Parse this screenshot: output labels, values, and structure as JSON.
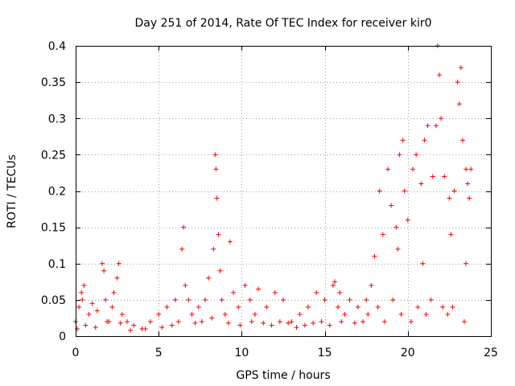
{
  "chart_data": {
    "type": "scatter",
    "title": "Day 251 of 2014, Rate Of TEC Index for receiver kir0",
    "xlabel": "GPS time / hours",
    "ylabel": "ROTI / TECUs",
    "xlim": [
      0,
      25
    ],
    "ylim": [
      0,
      0.4
    ],
    "xticks": [
      0,
      5,
      10,
      15,
      20,
      25
    ],
    "xtick_labels": [
      "0",
      "5",
      "10",
      "15",
      "20",
      "25"
    ],
    "yticks": [
      0,
      0.05,
      0.1,
      0.15,
      0.2,
      0.25,
      0.3,
      0.35,
      0.4
    ],
    "ytick_labels": [
      "0",
      "0.05",
      "0.1",
      "0.15",
      "0.2",
      "0.25",
      "0.3",
      "0.35",
      "0.4"
    ],
    "grid": true,
    "marker": "+",
    "color": "#ff0000",
    "series": [
      {
        "name": "ROTI",
        "x": [
          0.0,
          0.2,
          0.35,
          0.5,
          0.8,
          1.0,
          1.3,
          1.6,
          1.7,
          1.8,
          2.0,
          2.3,
          2.5,
          2.6,
          2.8,
          3.1,
          3.5,
          4.0,
          4.5,
          5.0,
          5.5,
          6.0,
          6.4,
          6.5,
          6.8,
          7.0,
          7.4,
          7.8,
          8.0,
          8.3,
          8.4,
          8.45,
          8.5,
          8.6,
          8.8,
          9.0,
          9.3,
          9.5,
          9.8,
          10.2,
          10.5,
          10.8,
          11.0,
          11.5,
          12.0,
          12.5,
          13.0,
          13.5,
          14.0,
          14.5,
          15.0,
          15.5,
          15.6,
          15.8,
          16.2,
          16.5,
          17.0,
          17.5,
          17.8,
          18.0,
          18.3,
          18.5,
          18.8,
          19.0,
          19.3,
          19.5,
          19.7,
          19.8,
          20.0,
          20.3,
          20.5,
          20.8,
          21.0,
          21.2,
          21.5,
          21.7,
          21.8,
          21.9,
          22.0,
          22.2,
          22.5,
          22.8,
          23.0,
          23.1,
          23.2,
          23.3,
          23.5,
          23.6,
          23.7,
          23.8,
          0.1,
          0.6,
          1.2,
          1.9,
          2.7,
          3.3,
          4.2,
          5.2,
          5.8,
          6.2,
          7.2,
          7.6,
          8.2,
          9.2,
          9.9,
          10.6,
          11.3,
          11.8,
          12.3,
          12.8,
          13.3,
          13.8,
          14.3,
          14.8,
          15.3,
          16.0,
          16.8,
          17.3,
          17.6,
          18.2,
          18.6,
          19.1,
          19.6,
          20.2,
          20.6,
          21.1,
          21.4,
          22.1,
          22.4,
          22.7,
          23.4,
          0.4,
          2.2,
          6.6,
          8.7,
          15.9,
          19.4,
          20.9,
          22.6,
          23.5
        ],
        "y": [
          0.02,
          0.04,
          0.06,
          0.07,
          0.03,
          0.045,
          0.035,
          0.1,
          0.09,
          0.05,
          0.02,
          0.06,
          0.08,
          0.1,
          0.03,
          0.02,
          0.015,
          0.01,
          0.02,
          0.03,
          0.04,
          0.05,
          0.12,
          0.15,
          0.05,
          0.03,
          0.04,
          0.05,
          0.08,
          0.12,
          0.25,
          0.23,
          0.19,
          0.14,
          0.05,
          0.03,
          0.13,
          0.06,
          0.04,
          0.07,
          0.05,
          0.03,
          0.065,
          0.04,
          0.06,
          0.05,
          0.02,
          0.03,
          0.04,
          0.06,
          0.05,
          0.07,
          0.075,
          0.04,
          0.03,
          0.05,
          0.04,
          0.05,
          0.07,
          0.11,
          0.2,
          0.14,
          0.23,
          0.18,
          0.15,
          0.25,
          0.27,
          0.2,
          0.16,
          0.23,
          0.25,
          0.21,
          0.27,
          0.29,
          0.22,
          0.29,
          0.4,
          0.36,
          0.3,
          0.22,
          0.19,
          0.2,
          0.35,
          0.32,
          0.37,
          0.27,
          0.23,
          0.21,
          0.19,
          0.23,
          0.01,
          0.015,
          0.012,
          0.02,
          0.018,
          0.008,
          0.01,
          0.012,
          0.015,
          0.02,
          0.018,
          0.02,
          0.025,
          0.018,
          0.015,
          0.02,
          0.018,
          0.015,
          0.02,
          0.018,
          0.012,
          0.015,
          0.018,
          0.02,
          0.015,
          0.02,
          0.018,
          0.02,
          0.03,
          0.04,
          0.02,
          0.05,
          0.03,
          0.02,
          0.04,
          0.03,
          0.05,
          0.04,
          0.03,
          0.04,
          0.02,
          0.05,
          0.04,
          0.07,
          0.09,
          0.06,
          0.12,
          0.1,
          0.14,
          0.1
        ]
      }
    ]
  }
}
